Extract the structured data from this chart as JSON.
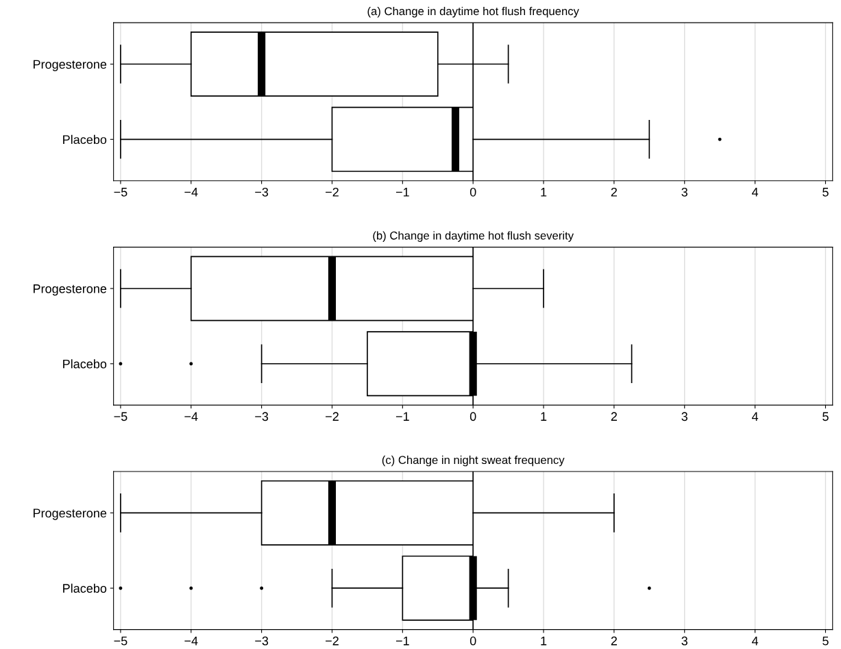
{
  "chart_data": [
    {
      "type": "box",
      "orientation": "horizontal",
      "title": "(a) Change in daytime hot flush frequency",
      "categories": [
        "Progesterone",
        "Placebo"
      ],
      "color": "#ffffff",
      "boxes": [
        {
          "low": -5,
          "q1": -4,
          "median": -3,
          "q3": -0.5,
          "high": 0.5
        },
        {
          "low": -5,
          "q1": -2,
          "median": -0.25,
          "q3": 0,
          "high": 2.5,
          "outliers": [
            3.5
          ]
        }
      ],
      "xlim": [
        -5.1,
        5.1
      ],
      "xticks": [
        {
          "value": -5,
          "label": "−5"
        },
        {
          "value": -4,
          "label": "−4"
        },
        {
          "value": -3,
          "label": "−3"
        },
        {
          "value": -2,
          "label": "−2"
        },
        {
          "value": -1,
          "label": "−1"
        },
        0,
        1,
        2,
        3,
        4,
        5
      ],
      "grid": "x",
      "ref_lines": [
        {
          "axis": "x",
          "value": 0,
          "label": null,
          "color": "#000000"
        }
      ]
    },
    {
      "type": "box",
      "orientation": "horizontal",
      "title": "(b) Change in daytime hot flush severity",
      "categories": [
        "Progesterone",
        "Placebo"
      ],
      "color": "#ffffff",
      "boxes": [
        {
          "low": -5,
          "q1": -4,
          "median": -2,
          "q3": 0,
          "high": 1
        },
        {
          "low": -3,
          "q1": -1.5,
          "median": 0,
          "q3": 0,
          "high": 2.25,
          "outliers": [
            -5,
            -4
          ]
        }
      ],
      "xlim": [
        -5.1,
        5.1
      ],
      "xticks": [
        {
          "value": -5,
          "label": "−5"
        },
        {
          "value": -4,
          "label": "−4"
        },
        {
          "value": -3,
          "label": "−3"
        },
        {
          "value": -2,
          "label": "−2"
        },
        {
          "value": -1,
          "label": "−1"
        },
        0,
        1,
        2,
        3,
        4,
        5
      ],
      "grid": "x",
      "ref_lines": [
        {
          "axis": "x",
          "value": 0,
          "label": null,
          "color": "#000000"
        }
      ]
    },
    {
      "type": "box",
      "orientation": "horizontal",
      "title": "(c) Change in night sweat frequency",
      "categories": [
        "Progesterone",
        "Placebo"
      ],
      "color": "#ffffff",
      "boxes": [
        {
          "low": -5,
          "q1": -3,
          "median": -2,
          "q3": 0,
          "high": 2
        },
        {
          "low": -2,
          "q1": -1,
          "median": 0,
          "q3": 0,
          "high": 0.5,
          "outliers": [
            -5,
            -4,
            -3,
            2.5
          ]
        }
      ],
      "xlim": [
        -5.1,
        5.1
      ],
      "xticks": [
        {
          "value": -5,
          "label": "−5"
        },
        {
          "value": -4,
          "label": "−4"
        },
        {
          "value": -3,
          "label": "−3"
        },
        {
          "value": -2,
          "label": "−2"
        },
        {
          "value": -1,
          "label": "−1"
        },
        0,
        1,
        2,
        3,
        4,
        5
      ],
      "grid": "x",
      "ref_lines": [
        {
          "axis": "x",
          "value": 0,
          "label": null,
          "color": "#000000"
        }
      ]
    }
  ]
}
